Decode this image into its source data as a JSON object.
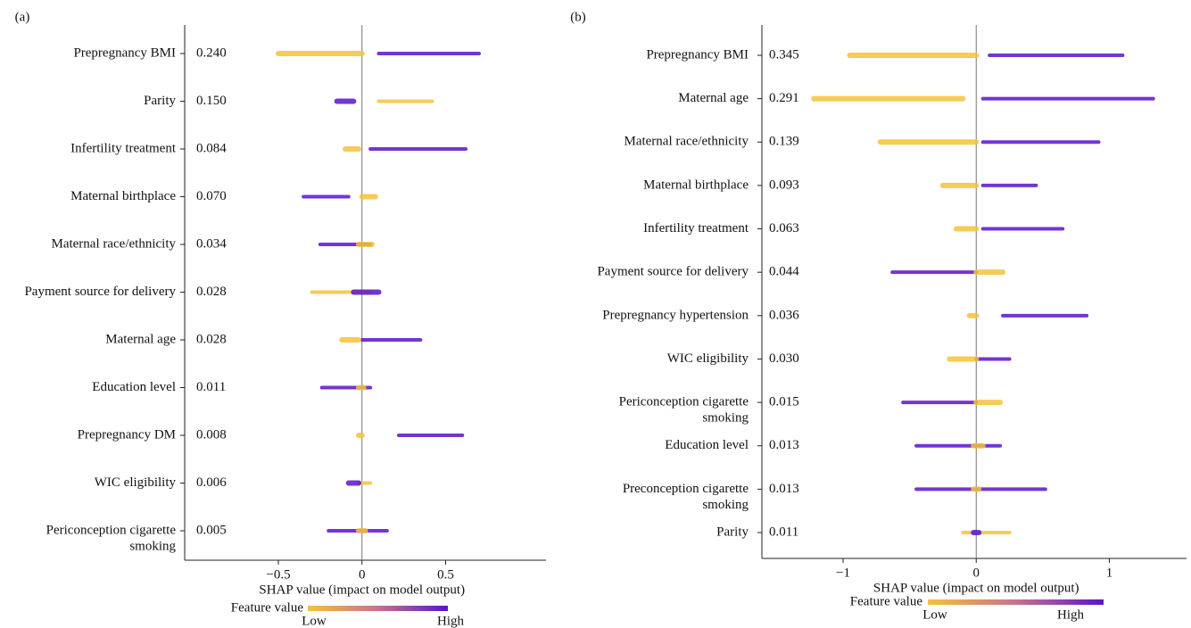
{
  "chart_data": [
    {
      "type": "beeswarm",
      "panel_label": "(a)",
      "xlabel": "SHAP value (impact on model output)",
      "categories": [
        "Prepregnancy BMI",
        "Parity",
        "Infertility treatment",
        "Maternal birthplace",
        "Maternal race/ethnicity",
        "Payment source for delivery",
        "Maternal age",
        "Education level",
        "Prepregnancy DM",
        "WIC eligibility",
        [
          "Periconception cigarette",
          "smoking"
        ]
      ],
      "values": [
        0.24,
        0.15,
        0.084,
        0.07,
        0.034,
        0.028,
        0.028,
        0.011,
        0.008,
        0.006,
        0.005
      ],
      "value_labels": [
        "0.240",
        "0.150",
        "0.084",
        "0.070",
        "0.034",
        "0.028",
        "0.028",
        "0.011",
        "0.008",
        "0.006",
        "0.005"
      ],
      "low_ranges": [
        [
          -0.5,
          0.0
        ],
        [
          0.1,
          0.42
        ],
        [
          -0.1,
          -0.02
        ],
        [
          0.0,
          0.08
        ],
        [
          -0.02,
          0.06
        ],
        [
          -0.3,
          0.05
        ],
        [
          -0.12,
          -0.02
        ],
        [
          -0.02,
          0.01
        ],
        [
          -0.02,
          0.0
        ],
        [
          -0.02,
          0.05
        ],
        [
          -0.02,
          0.02
        ]
      ],
      "high_ranges": [
        [
          0.1,
          0.7
        ],
        [
          -0.15,
          -0.05
        ],
        [
          0.05,
          0.62
        ],
        [
          -0.35,
          -0.08
        ],
        [
          -0.25,
          0.05
        ],
        [
          -0.05,
          0.1
        ],
        [
          0.0,
          0.35
        ],
        [
          -0.24,
          0.05
        ],
        [
          0.22,
          0.6
        ],
        [
          -0.08,
          -0.02
        ],
        [
          -0.2,
          0.15
        ]
      ],
      "colors": {
        "low": "#f5c23c",
        "high": "#5b14c9"
      },
      "xlim": [
        -1.06,
        1.1
      ],
      "xticks": [
        {
          "value": -0.5,
          "label": "−0.5"
        },
        0,
        0.5
      ],
      "colorbar_title": "Feature value",
      "colorbar_labels": [
        "Low",
        "High"
      ]
    },
    {
      "type": "beeswarm",
      "panel_label": "(b)",
      "xlabel": "SHAP value (impact on model output)",
      "categories": [
        "Prepregnancy BMI",
        "Maternal age",
        "Maternal race/ethnicity",
        "Maternal birthplace",
        "Infertility treatment",
        "Payment source for delivery",
        "Prepregnancy hypertension",
        "WIC eligibility",
        [
          "Periconception cigarette",
          "smoking"
        ],
        "Education level",
        [
          "Preconception cigarette",
          "smoking"
        ],
        "Parity"
      ],
      "values": [
        0.345,
        0.291,
        0.139,
        0.093,
        0.063,
        0.044,
        0.036,
        0.03,
        0.015,
        0.013,
        0.013,
        0.011
      ],
      "value_labels": [
        "0.345",
        "0.291",
        "0.139",
        "0.093",
        "0.063",
        "0.044",
        "0.036",
        "0.030",
        "0.015",
        "0.013",
        "0.013",
        "0.011"
      ],
      "low_ranges": [
        [
          -0.95,
          0.0
        ],
        [
          -1.22,
          -0.1
        ],
        [
          -0.72,
          0.0
        ],
        [
          -0.25,
          0.0
        ],
        [
          -0.15,
          0.0
        ],
        [
          0.0,
          0.2
        ],
        [
          -0.05,
          0.0
        ],
        [
          -0.2,
          0.0
        ],
        [
          0.0,
          0.18
        ],
        [
          -0.02,
          0.05
        ],
        [
          -0.02,
          0.02
        ],
        [
          -0.1,
          0.25
        ]
      ],
      "high_ranges": [
        [
          0.1,
          1.1
        ],
        [
          0.05,
          1.33
        ],
        [
          0.05,
          0.92
        ],
        [
          0.05,
          0.45
        ],
        [
          0.05,
          0.65
        ],
        [
          -0.63,
          0.0
        ],
        [
          0.2,
          0.83
        ],
        [
          0.0,
          0.25
        ],
        [
          -0.55,
          0.0
        ],
        [
          -0.45,
          0.18
        ],
        [
          -0.45,
          0.52
        ],
        [
          -0.02,
          0.02
        ]
      ],
      "colors": {
        "low": "#f5c23c",
        "high": "#5b14c9"
      },
      "xlim": [
        -1.61,
        1.58
      ],
      "xticks": [
        {
          "value": -1,
          "label": "−1"
        },
        0,
        1
      ],
      "colorbar_title": "Feature value",
      "colorbar_labels": [
        "Low",
        "High"
      ]
    }
  ]
}
